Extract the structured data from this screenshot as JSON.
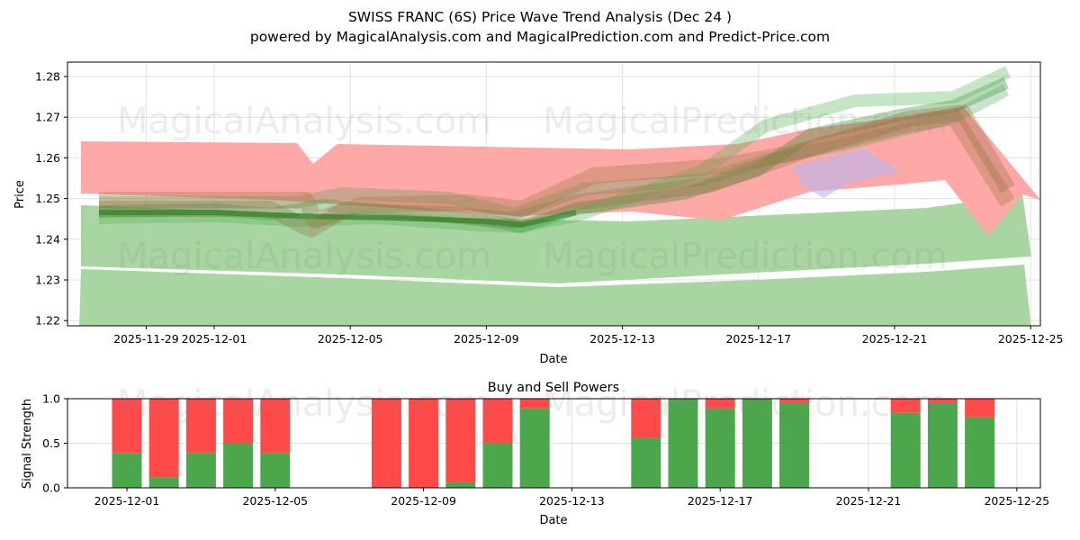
{
  "title_line1": "SWISS FRANC (6S) Price Wave Trend Analysis (Dec 24 )",
  "title_line2": "powered by MagicalAnalysis.com and MagicalPrediction.com and Predict-Price.com",
  "watermarks": [
    "MagicalAnalysis.com",
    "MagicalPrediction.com"
  ],
  "colors": {
    "buy": "#4ca64c",
    "sell": "#ff4a4a",
    "band_green": "#a8d5a2",
    "band_red": "#ffa8a8"
  },
  "chart_data": [
    {
      "type": "area",
      "title": "",
      "xlabel": "Date",
      "ylabel": "Price",
      "ylim": [
        1.219,
        1.283
      ],
      "yticks": [
        "1.22",
        "1.23",
        "1.24",
        "1.25",
        "1.26",
        "1.27",
        "1.28"
      ],
      "xticks": [
        "2025-11-29",
        "2025-12-01",
        "2025-12-05",
        "2025-12-09",
        "2025-12-13",
        "2025-12-17",
        "2025-12-21",
        "2025-12-25"
      ],
      "grid": true,
      "series": [
        {
          "name": "upper wave band",
          "color": "red",
          "x": [
            "2025-11-28",
            "2025-12-04",
            "2025-12-05",
            "2025-12-13",
            "2025-12-17",
            "2025-12-21",
            "2025-12-23",
            "2025-12-25"
          ],
          "upper": [
            1.264,
            1.258,
            1.263,
            1.262,
            1.262,
            1.267,
            1.27,
            1.249
          ],
          "lower": [
            1.249,
            1.25,
            1.251,
            1.248,
            1.248,
            1.253,
            1.255,
            1.241
          ]
        },
        {
          "name": "lower wave band",
          "color": "green",
          "x": [
            "2025-11-28",
            "2025-12-09",
            "2025-12-13",
            "2025-12-21",
            "2025-12-25"
          ],
          "upper": [
            1.2485,
            1.245,
            1.244,
            1.247,
            1.251
          ],
          "lower": [
            1.219,
            1.219,
            1.219,
            1.219,
            1.219
          ]
        },
        {
          "name": "trend waves",
          "color": "green",
          "x": [
            "2025-11-28",
            "2025-12-05",
            "2025-12-10",
            "2025-12-13",
            "2025-12-17",
            "2025-12-21",
            "2025-12-24"
          ],
          "values": [
            1.247,
            1.246,
            1.243,
            1.248,
            1.259,
            1.27,
            1.279
          ]
        }
      ]
    },
    {
      "type": "bar",
      "title": "Buy and Sell Powers",
      "xlabel": "Date",
      "ylabel": "Signal Strength",
      "ylim": [
        0,
        1.0
      ],
      "yticks": [
        "0.0",
        "0.5",
        "1.0"
      ],
      "xticks": [
        "2025-12-01",
        "2025-12-05",
        "2025-12-09",
        "2025-12-13",
        "2025-12-17",
        "2025-12-21",
        "2025-12-25"
      ],
      "categories": [
        "2025-12-01",
        "2025-12-02",
        "2025-12-03",
        "2025-12-04",
        "2025-12-05",
        "2025-12-08",
        "2025-12-09",
        "2025-12-10",
        "2025-12-11",
        "2025-12-12",
        "2025-12-15",
        "2025-12-16",
        "2025-12-17",
        "2025-12-18",
        "2025-12-19",
        "2025-12-22",
        "2025-12-23",
        "2025-12-24"
      ],
      "series": [
        {
          "name": "Buy",
          "values": [
            0.39,
            0.12,
            0.39,
            0.5,
            0.39,
            0.0,
            0.0,
            0.06,
            0.5,
            0.89,
            0.56,
            1.0,
            0.89,
            1.0,
            0.95,
            0.84,
            0.95,
            0.79
          ]
        },
        {
          "name": "Sell",
          "values": [
            0.61,
            0.88,
            0.61,
            0.5,
            0.61,
            1.0,
            1.0,
            0.94,
            0.5,
            0.11,
            0.44,
            0.0,
            0.11,
            0.0,
            0.05,
            0.16,
            0.05,
            0.21
          ]
        }
      ]
    }
  ]
}
